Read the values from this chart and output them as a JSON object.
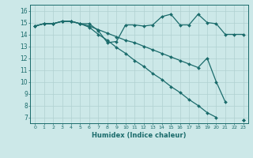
{
  "xlabel": "Humidex (Indice chaleur)",
  "background_color": "#cce8e8",
  "grid_color": "#b0d0d0",
  "line_color": "#1a6b6b",
  "x_values": [
    0,
    1,
    2,
    3,
    4,
    5,
    6,
    7,
    8,
    9,
    10,
    11,
    12,
    13,
    14,
    15,
    16,
    17,
    18,
    19,
    20,
    21,
    22,
    23
  ],
  "line1": [
    14.7,
    14.9,
    14.9,
    15.1,
    15.1,
    14.9,
    14.9,
    14.3,
    13.3,
    13.4,
    14.8,
    14.8,
    14.7,
    14.8,
    15.5,
    15.7,
    14.8,
    14.8,
    15.7,
    15.0,
    14.9,
    14.0,
    14.0,
    14.0
  ],
  "line2": [
    14.7,
    14.9,
    14.9,
    15.1,
    15.1,
    14.9,
    14.6,
    14.0,
    13.5,
    12.9,
    12.4,
    11.8,
    11.3,
    10.7,
    10.2,
    9.6,
    9.1,
    8.5,
    8.0,
    7.4,
    7.0,
    null,
    null,
    6.8
  ],
  "line3": [
    14.7,
    14.9,
    14.9,
    15.1,
    15.1,
    14.9,
    14.7,
    14.4,
    14.1,
    13.8,
    13.5,
    13.3,
    13.0,
    12.7,
    12.4,
    12.1,
    11.8,
    11.5,
    11.2,
    12.0,
    10.0,
    8.3,
    null,
    6.8
  ],
  "ylim": [
    6.5,
    16.5
  ],
  "yticks": [
    7,
    8,
    9,
    10,
    11,
    12,
    13,
    14,
    15,
    16
  ],
  "xlim": [
    -0.5,
    23.5
  ],
  "figsize": [
    3.2,
    2.0
  ],
  "dpi": 100
}
